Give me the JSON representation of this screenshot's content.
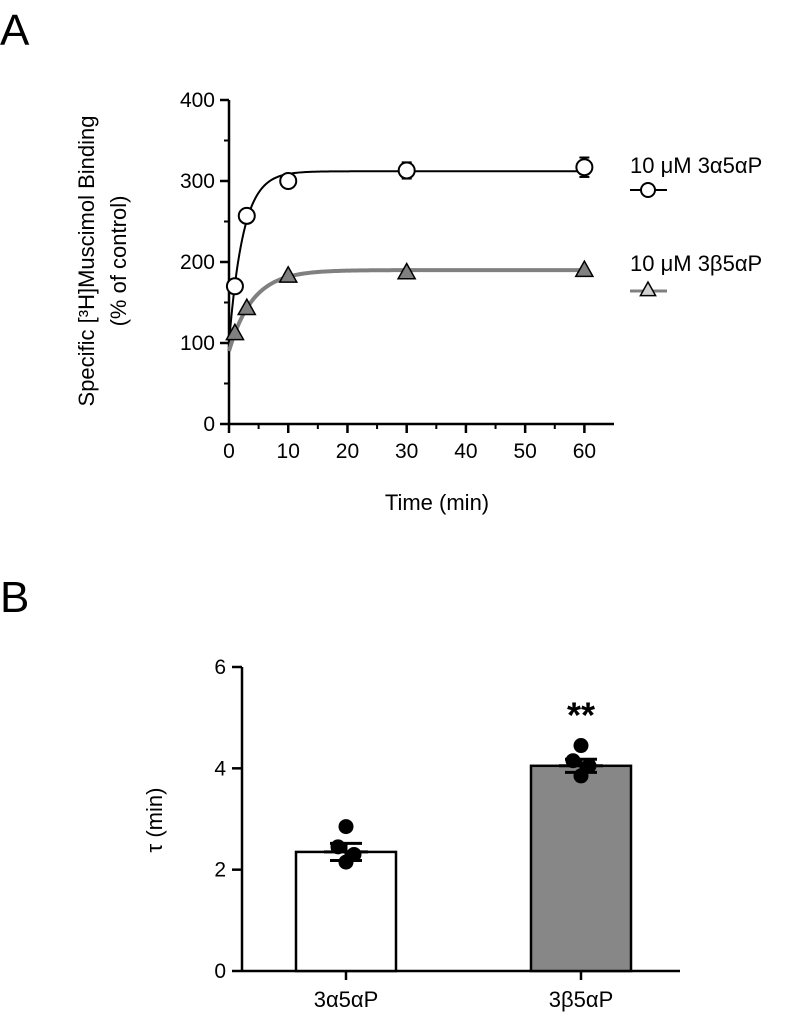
{
  "panels": {
    "a": "A",
    "b": "B"
  },
  "chart_data": [
    {
      "type": "line",
      "panel": "A",
      "ylabel_line1": "Specific [³H]Muscimol Binding",
      "ylabel_line2": "(% of control)",
      "xlabel": "Time (min)",
      "xlim": [
        0,
        65
      ],
      "ylim": [
        0,
        400
      ],
      "xticks": [
        0,
        10,
        20,
        30,
        40,
        50,
        60
      ],
      "yticks": [
        0,
        100,
        200,
        300,
        400
      ],
      "grid": false,
      "legend_position": "right",
      "series": [
        {
          "name": "10 μM 3α5αP",
          "marker": "circle",
          "marker_fill": "#ffffff",
          "line_color": "#000000",
          "x": [
            1,
            3,
            10,
            30,
            60
          ],
          "y": [
            170,
            257,
            300,
            313,
            317
          ],
          "err": [
            6,
            8,
            8,
            10,
            12
          ],
          "fit": {
            "plateau": 312,
            "y0": 100,
            "tau": 2.4
          }
        },
        {
          "name": "10 μM 3β5αP",
          "marker": "triangle",
          "marker_fill": "#808080",
          "line_color": "#808080",
          "x": [
            1,
            3,
            10,
            30,
            60
          ],
          "y": [
            112,
            143,
            183,
            187,
            190
          ],
          "err": [
            0,
            0,
            0,
            0,
            0
          ],
          "fit": {
            "plateau": 190,
            "y0": 90,
            "tau": 4.0
          }
        }
      ]
    },
    {
      "type": "bar",
      "panel": "B",
      "ylabel": "τ (min)",
      "categories": [
        "3α5αP",
        "3β5αP"
      ],
      "values": [
        2.35,
        4.05
      ],
      "sem": [
        0.17,
        0.13
      ],
      "points": [
        [
          2.85,
          2.45,
          2.3,
          2.15
        ],
        [
          4.45,
          4.15,
          4.05,
          3.85
        ]
      ],
      "colors": [
        "#ffffff",
        "#878787"
      ],
      "ylim": [
        0,
        6
      ],
      "yticks": [
        0,
        2,
        4,
        6
      ],
      "annotation": "**",
      "annotation_category": "3β5αP",
      "grid": false
    }
  ]
}
